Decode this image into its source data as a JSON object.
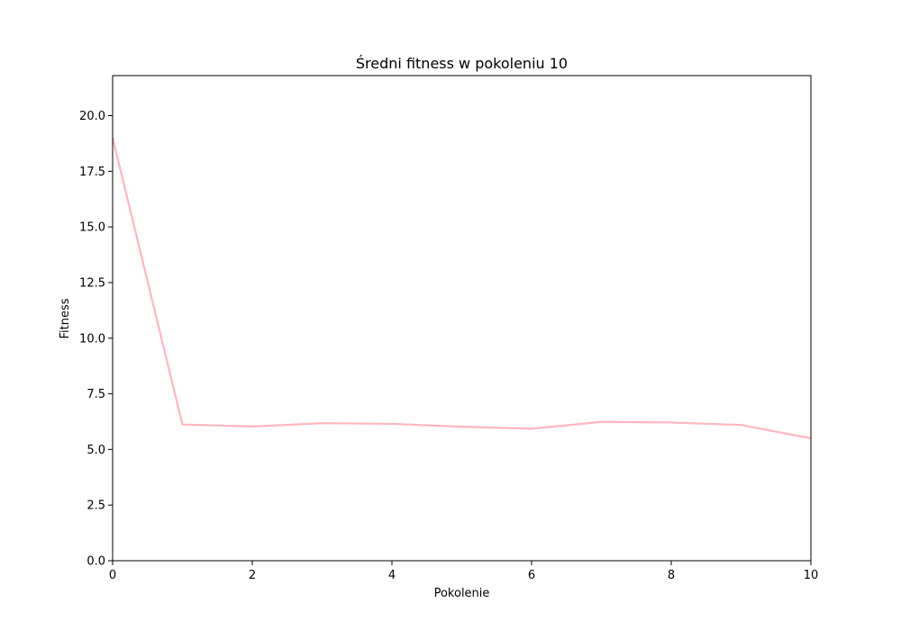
{
  "chart_data": {
    "type": "line",
    "title": "Średni fitness w pokoleniu 10",
    "xlabel": "Pokolenie",
    "ylabel": "Fitness",
    "xlim": [
      0,
      10
    ],
    "ylim": [
      0,
      21.8
    ],
    "x_ticks": [
      0,
      2,
      4,
      6,
      8,
      10
    ],
    "y_ticks": [
      0.0,
      2.5,
      5.0,
      7.5,
      10.0,
      12.5,
      15.0,
      17.5,
      20.0
    ],
    "x_tick_labels": [
      "0",
      "2",
      "4",
      "6",
      "8",
      "10"
    ],
    "y_tick_labels": [
      "0.0",
      "2.5",
      "5.0",
      "7.5",
      "10.0",
      "12.5",
      "15.0",
      "17.5",
      "20.0"
    ],
    "grid": false,
    "series": [
      {
        "color": "#ffb6c1",
        "x": [
          0,
          1,
          2,
          3,
          4,
          5,
          6,
          7,
          8,
          9,
          10
        ],
        "y": [
          19.0,
          6.12,
          6.03,
          6.18,
          6.15,
          6.02,
          5.93,
          6.24,
          6.21,
          6.1,
          5.5
        ]
      }
    ]
  }
}
